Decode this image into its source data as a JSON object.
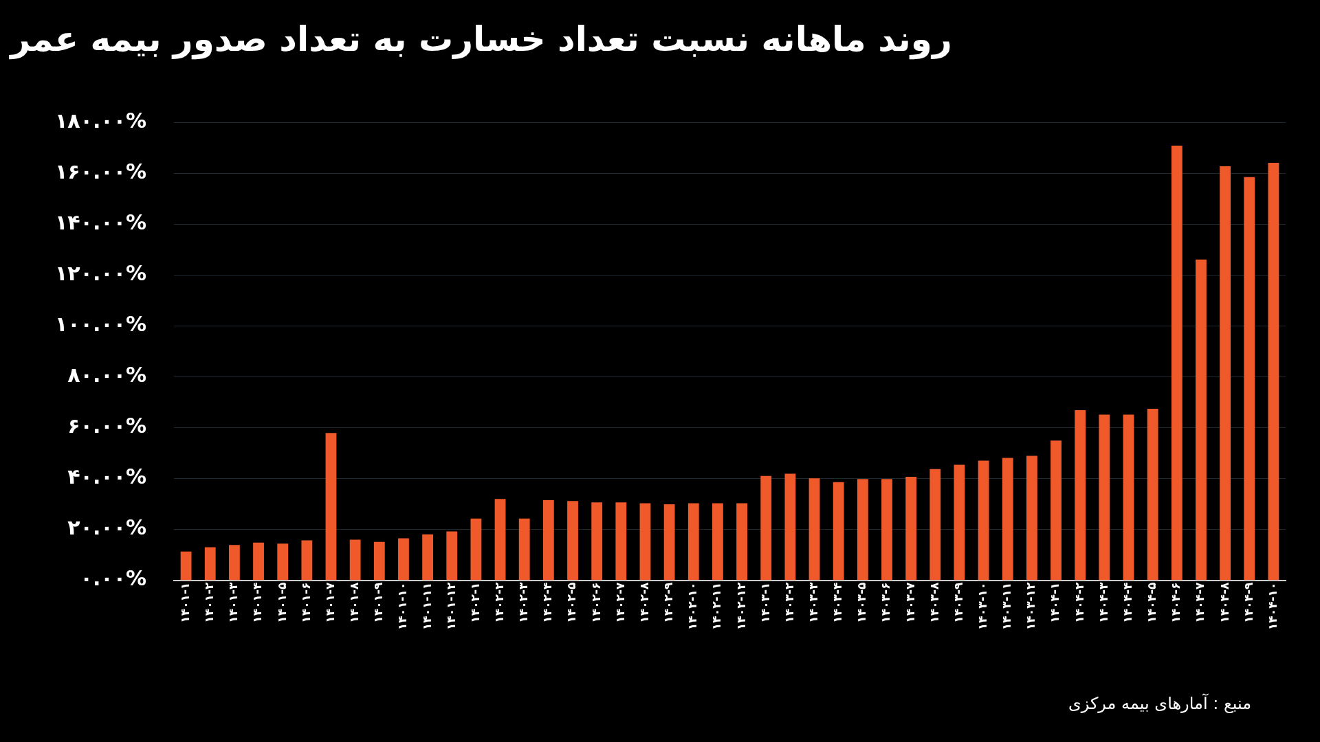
{
  "chart_data": {
    "type": "bar",
    "title": "روند ماهانه نسبت تعداد خسارت به تعداد صدور بیمه عمر",
    "categories": [
      "۱۴۰۱-۱",
      "۱۴۰۱-۲",
      "۱۴۰۱-۳",
      "۱۴۰۱-۴",
      "۱۴۰۱-۵",
      "۱۴۰۱-۶",
      "۱۴۰۱-۷",
      "۱۴۰۱-۸",
      "۱۴۰۱-۹",
      "۱۴۰۱-۱۰",
      "۱۴۰۱-۱۱",
      "۱۴۰۱-۱۲",
      "۱۴۰۲-۱",
      "۱۴۰۲-۲",
      "۱۴۰۲-۳",
      "۱۴۰۲-۴",
      "۱۴۰۲-۵",
      "۱۴۰۲-۶",
      "۱۴۰۲-۷",
      "۱۴۰۲-۸",
      "۱۴۰۲-۹",
      "۱۴۰۲-۱۰",
      "۱۴۰۲-۱۱",
      "۱۴۰۲-۱۲",
      "۱۴۰۳-۱",
      "۱۴۰۳-۲",
      "۱۴۰۳-۳",
      "۱۴۰۳-۴",
      "۱۴۰۳-۵",
      "۱۴۰۳-۶",
      "۱۴۰۳-۷",
      "۱۴۰۳-۸",
      "۱۴۰۳-۹",
      "۱۴۰۳-۱۰",
      "۱۴۰۳-۱۱",
      "۱۴۰۳-۱۲",
      "۱۴۰۴-۱",
      "۱۴۰۴-۲",
      "۱۴۰۴-۳",
      "۱۴۰۴-۴",
      "۱۴۰۴-۵",
      "۱۴۰۴-۶",
      "۱۴۰۴-۷",
      "۱۴۰۴-۸",
      "۱۴۰۴-۹",
      "۱۴۰۴-۱۰"
    ],
    "values": [
      11.3,
      13.0,
      13.9,
      14.8,
      14.4,
      15.7,
      57.9,
      16.0,
      15.1,
      16.5,
      18.1,
      19.2,
      24.3,
      32.0,
      24.3,
      31.5,
      31.2,
      30.6,
      30.6,
      30.3,
      29.9,
      30.3,
      30.3,
      30.3,
      41.0,
      41.9,
      40.1,
      38.6,
      39.8,
      39.8,
      40.7,
      43.7,
      45.4,
      47.0,
      48.1,
      48.9,
      54.9,
      66.9,
      65.1,
      65.1,
      67.4,
      170.8,
      126.1,
      162.7,
      158.5,
      164.1
    ],
    "color": "#f05a2a",
    "ylim": [
      0,
      180
    ],
    "yticks": [
      {
        "value": 0,
        "label": "۰.۰۰%"
      },
      {
        "value": 20,
        "label": "۲۰.۰۰%"
      },
      {
        "value": 40,
        "label": "۴۰.۰۰%"
      },
      {
        "value": 60,
        "label": "۶۰.۰۰%"
      },
      {
        "value": 80,
        "label": "۸۰.۰۰%"
      },
      {
        "value": 100,
        "label": "۱۰۰.۰۰%"
      },
      {
        "value": 120,
        "label": "۱۲۰.۰۰%"
      },
      {
        "value": 140,
        "label": "۱۴۰.۰۰%"
      },
      {
        "value": 160,
        "label": "۱۶۰.۰۰%"
      },
      {
        "value": 180,
        "label": "۱۸۰.۰۰%"
      }
    ],
    "grid": "y",
    "legend": false,
    "annotations": [
      "منبع : آمارهای بیمه مرکزی"
    ]
  }
}
